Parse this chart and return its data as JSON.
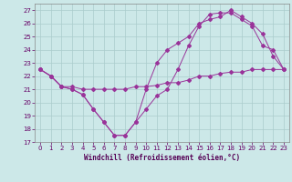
{
  "xlabel": "Windchill (Refroidissement éolien,°C)",
  "background_color": "#cce8e8",
  "grid_color": "#aacccc",
  "line_color": "#993399",
  "xlim": [
    -0.5,
    23.5
  ],
  "ylim": [
    17,
    27.5
  ],
  "yticks": [
    17,
    18,
    19,
    20,
    21,
    22,
    23,
    24,
    25,
    26,
    27
  ],
  "xticks": [
    0,
    1,
    2,
    3,
    4,
    5,
    6,
    7,
    8,
    9,
    10,
    11,
    12,
    13,
    14,
    15,
    16,
    17,
    18,
    19,
    20,
    21,
    22,
    23
  ],
  "line1_x": [
    0,
    1,
    2,
    3,
    4,
    5,
    6,
    7,
    8,
    9,
    10,
    11,
    12,
    13,
    14,
    15,
    16,
    17,
    18,
    19,
    20,
    21,
    22,
    23
  ],
  "line1_y": [
    22.5,
    22.0,
    21.2,
    21.0,
    20.6,
    19.5,
    18.5,
    17.5,
    17.5,
    18.5,
    19.5,
    20.5,
    21.0,
    22.5,
    24.3,
    25.8,
    26.7,
    26.8,
    26.8,
    26.3,
    25.8,
    24.3,
    24.0,
    22.5
  ],
  "line2_x": [
    0,
    1,
    2,
    3,
    4,
    5,
    6,
    7,
    8,
    9,
    10,
    11,
    12,
    13,
    14,
    15,
    16,
    17,
    18,
    19,
    20,
    21,
    22,
    23
  ],
  "line2_y": [
    22.5,
    22.0,
    21.2,
    21.0,
    20.6,
    19.5,
    18.5,
    17.5,
    17.5,
    18.5,
    21.0,
    23.0,
    24.0,
    24.5,
    25.0,
    26.0,
    26.3,
    26.5,
    27.0,
    26.5,
    26.0,
    25.2,
    23.5,
    22.5
  ],
  "line3_x": [
    0,
    1,
    2,
    3,
    4,
    5,
    6,
    7,
    8,
    9,
    10,
    11,
    12,
    13,
    14,
    15,
    16,
    17,
    18,
    19,
    20,
    21,
    22,
    23
  ],
  "line3_y": [
    22.5,
    22.0,
    21.2,
    21.2,
    21.0,
    21.0,
    21.0,
    21.0,
    21.0,
    21.2,
    21.2,
    21.3,
    21.5,
    21.5,
    21.7,
    22.0,
    22.0,
    22.2,
    22.3,
    22.3,
    22.5,
    22.5,
    22.5,
    22.5
  ]
}
